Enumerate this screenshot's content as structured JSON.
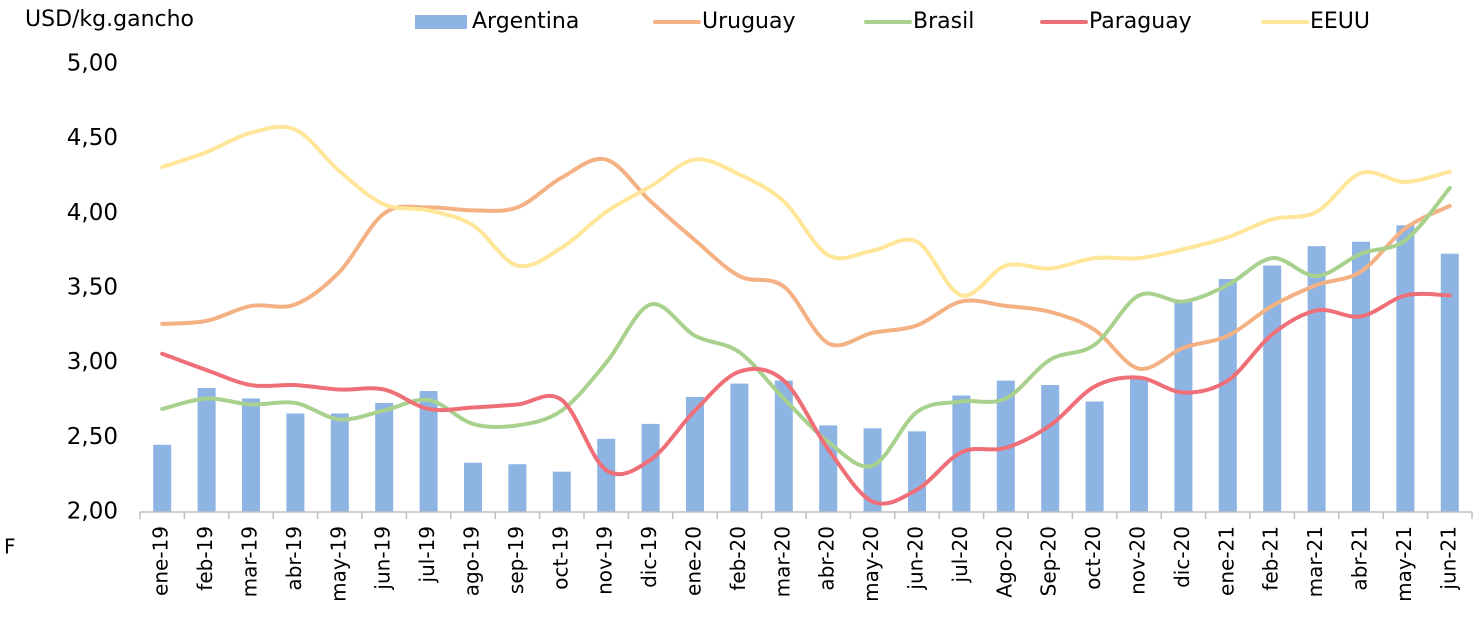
{
  "chart_data": {
    "type": "bar_line",
    "y_label": "USD/kg.gancho",
    "note": "F",
    "categories": [
      "ene-19",
      "feb-19",
      "mar-19",
      "abr-19",
      "may-19",
      "jun-19",
      "jul-19",
      "ago-19",
      "sep-19",
      "oct-19",
      "nov-19",
      "dic-19",
      "ene-20",
      "feb-20",
      "mar-20",
      "abr-20",
      "may-20",
      "jun-20",
      "jul-20",
      "Ago-20",
      "Sep-20",
      "oct-20",
      "nov-20",
      "dic-20",
      "ene-21",
      "feb-21",
      "mar-21",
      "abr-21",
      "may-21",
      "jun-21"
    ],
    "series": [
      {
        "name": "Argentina",
        "type": "bar",
        "color": "#8db4e3",
        "values": [
          2.45,
          2.83,
          2.76,
          2.66,
          2.66,
          2.73,
          2.81,
          2.33,
          2.32,
          2.27,
          2.49,
          2.59,
          2.77,
          2.86,
          2.88,
          2.58,
          2.56,
          2.54,
          2.78,
          2.88,
          2.85,
          2.74,
          2.9,
          3.42,
          3.56,
          3.65,
          3.78,
          3.81,
          3.92,
          3.73
        ]
      },
      {
        "name": "Uruguay",
        "type": "line",
        "color": "#f4b183",
        "values": [
          3.26,
          3.28,
          3.38,
          3.39,
          3.61,
          4.0,
          4.04,
          4.02,
          4.04,
          4.24,
          4.36,
          4.08,
          3.82,
          3.58,
          3.51,
          3.13,
          3.2,
          3.25,
          3.41,
          3.38,
          3.34,
          3.22,
          2.96,
          3.1,
          3.18,
          3.38,
          3.52,
          3.61,
          3.9,
          4.05
        ]
      },
      {
        "name": "Brasil",
        "type": "line",
        "color": "#a9d18e",
        "values": [
          2.69,
          2.76,
          2.72,
          2.73,
          2.62,
          2.68,
          2.75,
          2.59,
          2.58,
          2.68,
          3.0,
          3.39,
          3.18,
          3.07,
          2.76,
          2.47,
          2.31,
          2.67,
          2.74,
          2.76,
          3.02,
          3.12,
          3.45,
          3.41,
          3.52,
          3.7,
          3.58,
          3.73,
          3.82,
          4.17
        ]
      },
      {
        "name": "Paraguay",
        "type": "line",
        "color": "#ef6f78",
        "values": [
          3.06,
          2.95,
          2.85,
          2.85,
          2.82,
          2.82,
          2.69,
          2.7,
          2.72,
          2.75,
          2.28,
          2.35,
          2.68,
          2.94,
          2.88,
          2.42,
          2.07,
          2.15,
          2.4,
          2.43,
          2.58,
          2.84,
          2.9,
          2.8,
          2.88,
          3.19,
          3.35,
          3.31,
          3.45,
          3.45
        ]
      },
      {
        "name": "EEUU",
        "type": "line",
        "color": "#ffe699",
        "values": [
          4.31,
          4.41,
          4.54,
          4.56,
          4.28,
          4.06,
          4.02,
          3.92,
          3.65,
          3.77,
          4.01,
          4.18,
          4.36,
          4.26,
          4.08,
          3.72,
          3.75,
          3.81,
          3.45,
          3.65,
          3.63,
          3.7,
          3.7,
          3.76,
          3.84,
          3.96,
          4.01,
          4.27,
          4.21,
          4.28
        ]
      }
    ],
    "ylim": [
      2,
      5
    ],
    "yticks": [
      {
        "value": 2,
        "label": "2,00"
      },
      {
        "value": 2.5,
        "label": "2,50"
      },
      {
        "value": 3,
        "label": "3,00"
      },
      {
        "value": 3.5,
        "label": "3,50"
      },
      {
        "value": 4,
        "label": "4,00"
      },
      {
        "value": 4.5,
        "label": "4,50"
      },
      {
        "value": 5,
        "label": "5,00"
      }
    ],
    "grid": false,
    "legend": "top"
  }
}
